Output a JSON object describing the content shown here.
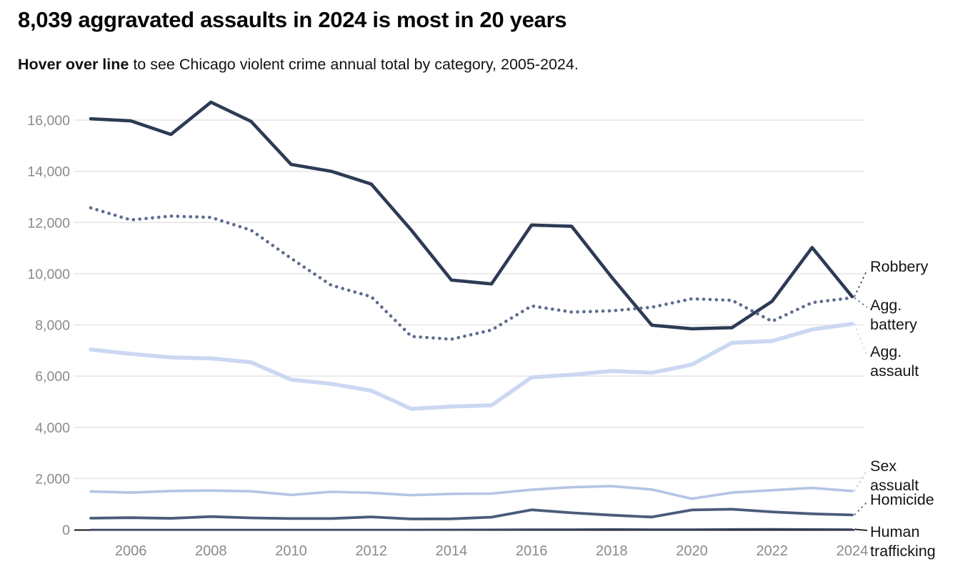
{
  "header": {
    "title": "8,039 aggravated assaults in 2024 is most in 20 years",
    "subtitle_bold": "Hover over line",
    "subtitle_rest": " to see Chicago violent crime annual total by category, 2005-2024."
  },
  "chart_data": {
    "type": "line",
    "title": "8,039 aggravated assaults in 2024 is most in 20 years",
    "subtitle": "Hover over line to see Chicago violent crime annual total by category, 2005-2024.",
    "x": [
      2005,
      2006,
      2007,
      2008,
      2009,
      2010,
      2011,
      2012,
      2013,
      2014,
      2015,
      2016,
      2017,
      2018,
      2019,
      2020,
      2021,
      2022,
      2023,
      2024
    ],
    "x_tick_labels": [
      "2006",
      "2008",
      "2010",
      "2012",
      "2014",
      "2016",
      "2018",
      "2020",
      "2022",
      "2024"
    ],
    "y_ticks": [
      0,
      2000,
      4000,
      6000,
      8000,
      10000,
      12000,
      14000,
      16000
    ],
    "y_tick_labels": [
      "0",
      "2,000",
      "4,000",
      "6,000",
      "8,000",
      "10,000",
      "12,000",
      "14,000",
      "16,000"
    ],
    "ylim": [
      0,
      16000
    ],
    "grid": "horizontal",
    "legend_position": "right-edge-direct-labels",
    "colors": {
      "grid_line": "#e4e4e4",
      "baseline": "#101218",
      "axis_text": "#8a8a8a",
      "label_text": "#141414"
    },
    "series": [
      {
        "name": "Robbery",
        "label_lines": [
          "Robbery"
        ],
        "color": "#2d3b55",
        "style": "solid",
        "width": 4.6,
        "leader": "dashed",
        "anchor_y": 377,
        "values": [
          16050,
          15970,
          15440,
          16700,
          15950,
          14270,
          14000,
          13500,
          11700,
          9750,
          9600,
          11900,
          11850,
          9860,
          7990,
          7850,
          7890,
          8920,
          11020,
          9100
        ]
      },
      {
        "name": "Agg. battery",
        "label_lines": [
          "Agg.",
          "battery"
        ],
        "color": "#5d6c8e",
        "style": "dotted",
        "width": 4.6,
        "leader": "dashed",
        "anchor_y": 430,
        "values": [
          12570,
          12100,
          12250,
          12200,
          11700,
          10600,
          9550,
          9100,
          7550,
          7440,
          7800,
          8740,
          8500,
          8550,
          8690,
          9020,
          8960,
          8140,
          8870,
          9060
        ]
      },
      {
        "name": "Agg. assault",
        "label_lines": [
          "Agg.",
          "assault"
        ],
        "color": "#ccd7f2",
        "style": "solid",
        "width": 5.6,
        "leader": "dashed",
        "anchor_y": 498,
        "values": [
          7040,
          6870,
          6730,
          6690,
          6540,
          5860,
          5700,
          5430,
          4720,
          4810,
          4860,
          5950,
          6050,
          6200,
          6130,
          6450,
          7300,
          7370,
          7820,
          8039
        ]
      },
      {
        "name": "Sex assualt",
        "label_lines": [
          "Sex",
          "assualt"
        ],
        "color": "#b5c4e6",
        "style": "solid",
        "width": 3.6,
        "leader": "dashed",
        "anchor_y": 657,
        "values": [
          1490,
          1450,
          1510,
          1530,
          1500,
          1360,
          1480,
          1440,
          1350,
          1400,
          1410,
          1560,
          1660,
          1700,
          1570,
          1210,
          1450,
          1540,
          1630,
          1510
        ]
      },
      {
        "name": "Homicide",
        "label_lines": [
          "Homicide"
        ],
        "color": "#4c5b7b",
        "style": "solid",
        "width": 3.8,
        "leader": "dashed",
        "anchor_y": 702,
        "values": [
          450,
          470,
          445,
          510,
          460,
          435,
          435,
          500,
          420,
          425,
          490,
          775,
          660,
          567,
          495,
          770,
          800,
          695,
          620,
          575
        ]
      },
      {
        "name": "Human trafficking",
        "label_lines": [
          "Human",
          "trafficking"
        ],
        "color": "#3b4a66",
        "style": "solid",
        "width": 2.4,
        "leader": "solid",
        "anchor_y": 742,
        "values": [
          2,
          2,
          2,
          2,
          3,
          2,
          3,
          3,
          4,
          5,
          8,
          14,
          18,
          22,
          16,
          18,
          24,
          28,
          22,
          17
        ]
      }
    ]
  }
}
